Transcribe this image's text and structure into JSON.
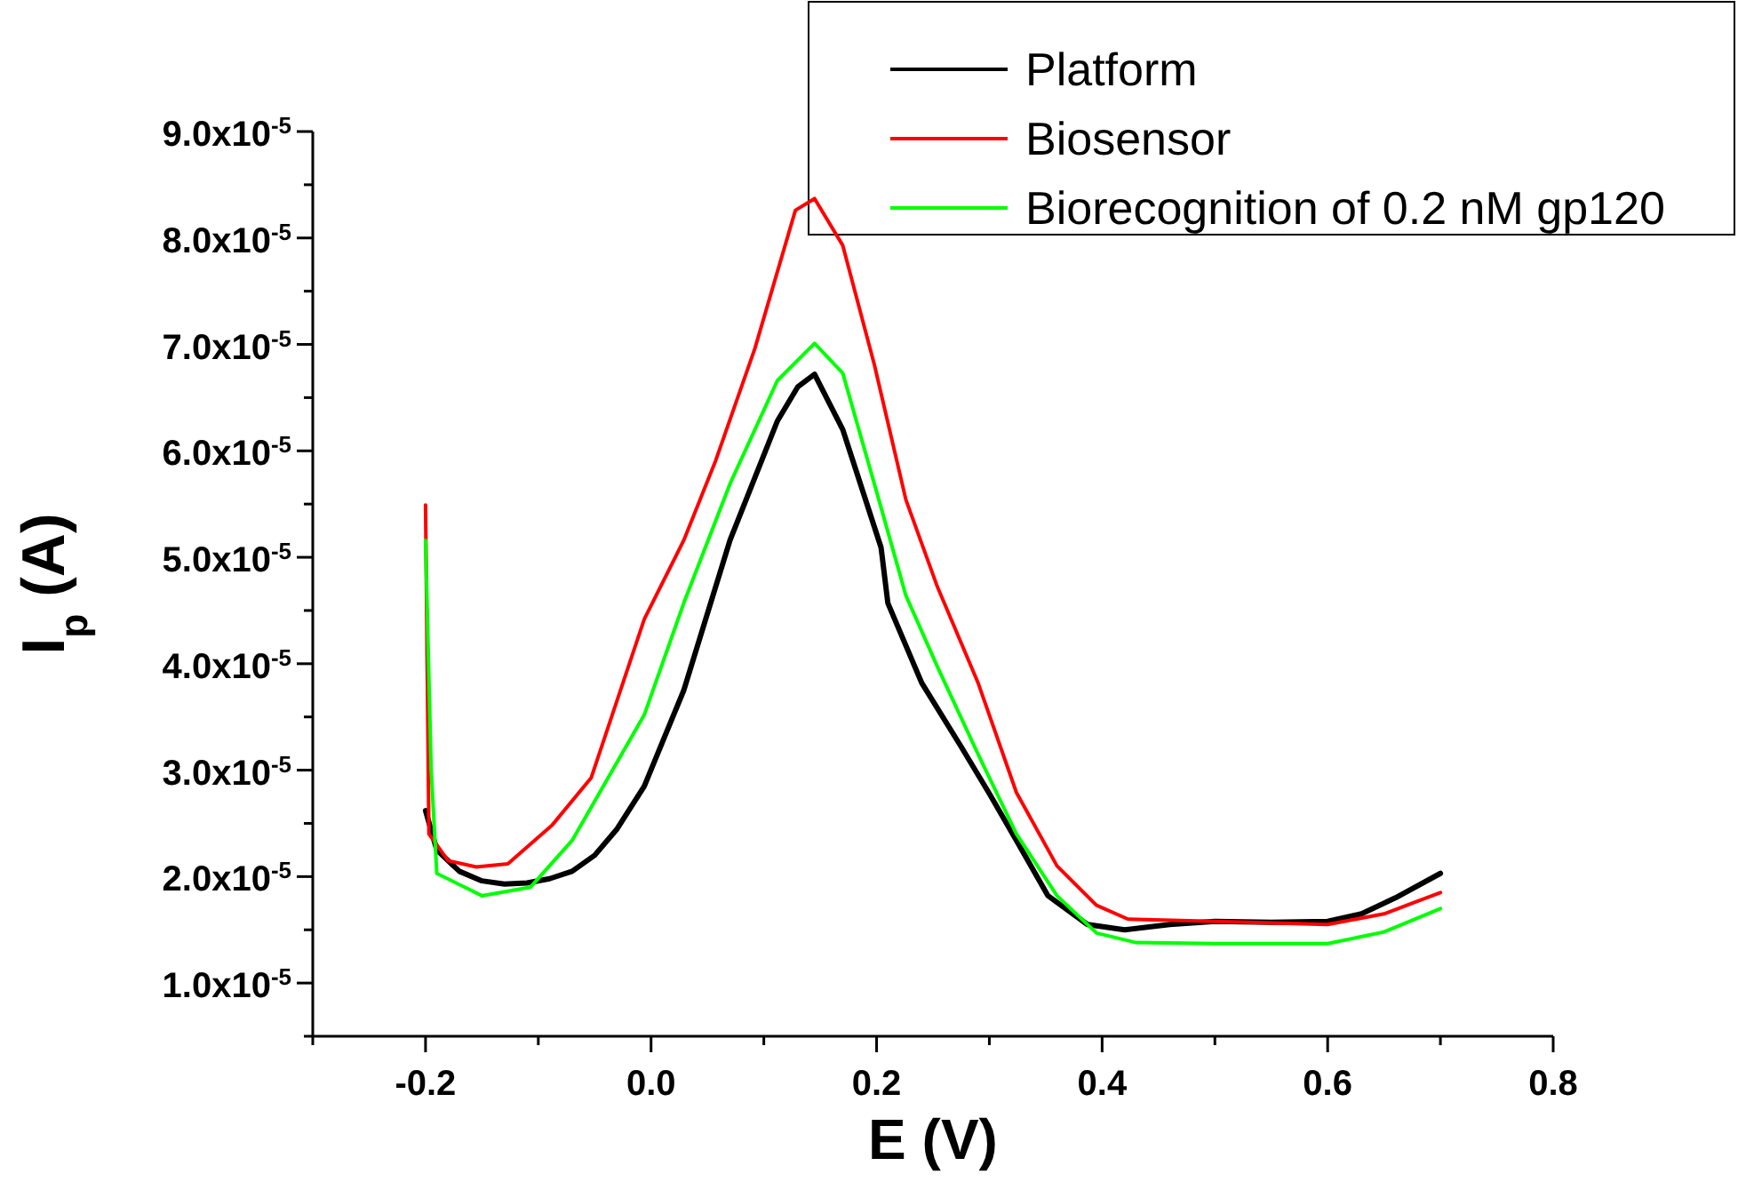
{
  "chart_data": {
    "type": "line",
    "xlabel": "E (V)",
    "ylabel": "I$_{p}$ (A)",
    "legend": "top right",
    "grid": false,
    "line_style": "solid",
    "marker": "none",
    "xlim": [
      -0.3,
      0.8
    ],
    "ylim": [
      5e-06,
      9e-05
    ],
    "xticks": [
      {
        "value": -0.3,
        "label": null
      },
      {
        "value": -0.2,
        "label": "-0.2"
      },
      {
        "value": -0.1,
        "label": null
      },
      {
        "value": 0,
        "label": "0.0"
      },
      {
        "value": 0.1,
        "label": null
      },
      {
        "value": 0.2,
        "label": "0.2"
      },
      {
        "value": 0.3,
        "label": null
      },
      {
        "value": 0.4,
        "label": "0.4"
      },
      {
        "value": 0.5,
        "label": null
      },
      {
        "value": 0.6,
        "label": "0.6"
      },
      {
        "value": 0.7,
        "label": null
      },
      {
        "value": 0.8,
        "label": "0.8"
      }
    ],
    "yticks": [
      {
        "value": 5e-06,
        "label": null
      },
      {
        "value": 1e-05,
        "label": "1.0x10$^{-5}$"
      },
      {
        "value": 1.5e-05,
        "label": null
      },
      {
        "value": 2e-05,
        "label": "2.0x10$^{-5}$"
      },
      {
        "value": 2.5e-05,
        "label": null
      },
      {
        "value": 3e-05,
        "label": "3.0x10$^{-5}$"
      },
      {
        "value": 3.5e-05,
        "label": null
      },
      {
        "value": 4e-05,
        "label": "4.0x10$^{-5}$"
      },
      {
        "value": 4.5e-05,
        "label": null
      },
      {
        "value": 5e-05,
        "label": "5.0x10$^{-5}$"
      },
      {
        "value": 5.5e-05,
        "label": null
      },
      {
        "value": 6e-05,
        "label": "6.0x10$^{-5}$"
      },
      {
        "value": 6.5e-05,
        "label": null
      },
      {
        "value": 7e-05,
        "label": "7.0x10$^{-5}$"
      },
      {
        "value": 7.5e-05,
        "label": null
      },
      {
        "value": 8e-05,
        "label": "8.0x10$^{-5}$"
      },
      {
        "value": 8.5e-05,
        "label": null
      },
      {
        "value": 9e-05,
        "label": "9.0x10$^{-5}$"
      }
    ],
    "series": [
      {
        "name": "Platform",
        "color": "#000000",
        "x": [
          -0.2,
          -0.19,
          -0.17,
          -0.15,
          -0.13,
          -0.11,
          -0.09,
          -0.07,
          -0.05,
          -0.03,
          -0.006,
          0.029,
          0.07,
          0.112,
          0.13,
          0.145,
          0.17,
          0.204,
          0.21,
          0.24,
          0.275,
          0.3,
          0.324,
          0.352,
          0.387,
          0.42,
          0.46,
          0.5,
          0.55,
          0.6,
          0.63,
          0.66,
          0.7
        ],
        "values": [
          2.62e-05,
          2.25e-05,
          2.05e-05,
          1.96e-05,
          1.93e-05,
          1.94e-05,
          1.98e-05,
          2.05e-05,
          2.2e-05,
          2.45e-05,
          2.85e-05,
          3.75e-05,
          5.16e-05,
          6.28e-05,
          6.6e-05,
          6.72e-05,
          6.2e-05,
          5.09e-05,
          4.57e-05,
          3.82e-05,
          3.22e-05,
          2.78e-05,
          2.34e-05,
          1.82e-05,
          1.55e-05,
          1.5e-05,
          1.55e-05,
          1.58e-05,
          1.57e-05,
          1.58e-05,
          1.65e-05,
          1.8e-05,
          2.03e-05
        ]
      },
      {
        "name": "Biosensor",
        "color": "#ff0000",
        "x": [
          -0.2,
          -0.197,
          -0.18,
          -0.155,
          -0.127,
          -0.088,
          -0.053,
          -0.006,
          0.029,
          0.057,
          0.092,
          0.128,
          0.145,
          0.17,
          0.198,
          0.226,
          0.254,
          0.29,
          0.324,
          0.36,
          0.395,
          0.423,
          0.5,
          0.6,
          0.65,
          0.7
        ],
        "values": [
          5.49e-05,
          2.4e-05,
          2.15e-05,
          2.09e-05,
          2.12e-05,
          2.48e-05,
          2.93e-05,
          4.42e-05,
          5.16e-05,
          5.9e-05,
          6.96e-05,
          8.26e-05,
          8.37e-05,
          7.93e-05,
          6.81e-05,
          5.54e-05,
          4.72e-05,
          3.82e-05,
          2.79e-05,
          2.1e-05,
          1.73e-05,
          1.6e-05,
          1.58e-05,
          1.55e-05,
          1.65e-05,
          1.85e-05
        ]
      },
      {
        "name": "Biorecognition of 0.2 nM gp120",
        "color": "#00ff00",
        "x": [
          -0.2,
          -0.195,
          -0.19,
          -0.15,
          -0.107,
          -0.07,
          -0.006,
          0.029,
          0.07,
          0.112,
          0.145,
          0.17,
          0.198,
          0.226,
          0.254,
          0.29,
          0.324,
          0.36,
          0.395,
          0.43,
          0.5,
          0.6,
          0.65,
          0.7
        ],
        "values": [
          5.16e-05,
          3e-05,
          2.03e-05,
          1.82e-05,
          1.9e-05,
          2.34e-05,
          3.52e-05,
          4.57e-05,
          5.69e-05,
          6.66e-05,
          7.01e-05,
          6.73e-05,
          5.69e-05,
          4.64e-05,
          3.97e-05,
          3.15e-05,
          2.4e-05,
          1.82e-05,
          1.47e-05,
          1.38e-05,
          1.37e-05,
          1.37e-05,
          1.48e-05,
          1.7e-05
        ]
      }
    ]
  }
}
